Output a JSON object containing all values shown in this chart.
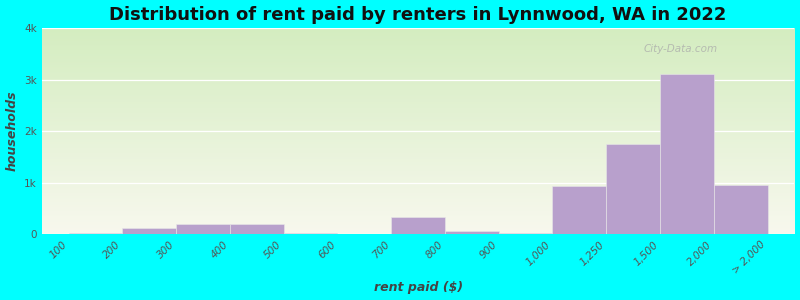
{
  "title": "Distribution of rent paid by renters in Lynnwood, WA in 2022",
  "xlabel": "rent paid ($)",
  "ylabel": "households",
  "background_color": "#00FFFF",
  "bar_color": "#b8a0cc",
  "bar_edge_color": "#e8e8e8",
  "tick_labels": [
    "100",
    "200",
    "300",
    "400",
    "500",
    "600",
    "700",
    "800",
    "900",
    "1,000",
    "1,250",
    "1,500",
    "2,000",
    "> 2,000"
  ],
  "bar_values": [
    20,
    120,
    200,
    200,
    20,
    10,
    330,
    60,
    30,
    930,
    1750,
    3100,
    950
  ],
  "ylim": [
    0,
    4000
  ],
  "yticks": [
    0,
    1000,
    2000,
    3000,
    4000
  ],
  "ytick_labels": [
    "0",
    "1k",
    "2k",
    "3k",
    "4k"
  ],
  "title_fontsize": 13,
  "axis_label_fontsize": 9,
  "tick_fontsize": 7.5,
  "gradient_top": "#d4edc0",
  "gradient_bottom": "#f8f8ee",
  "watermark": "City-Data.com"
}
